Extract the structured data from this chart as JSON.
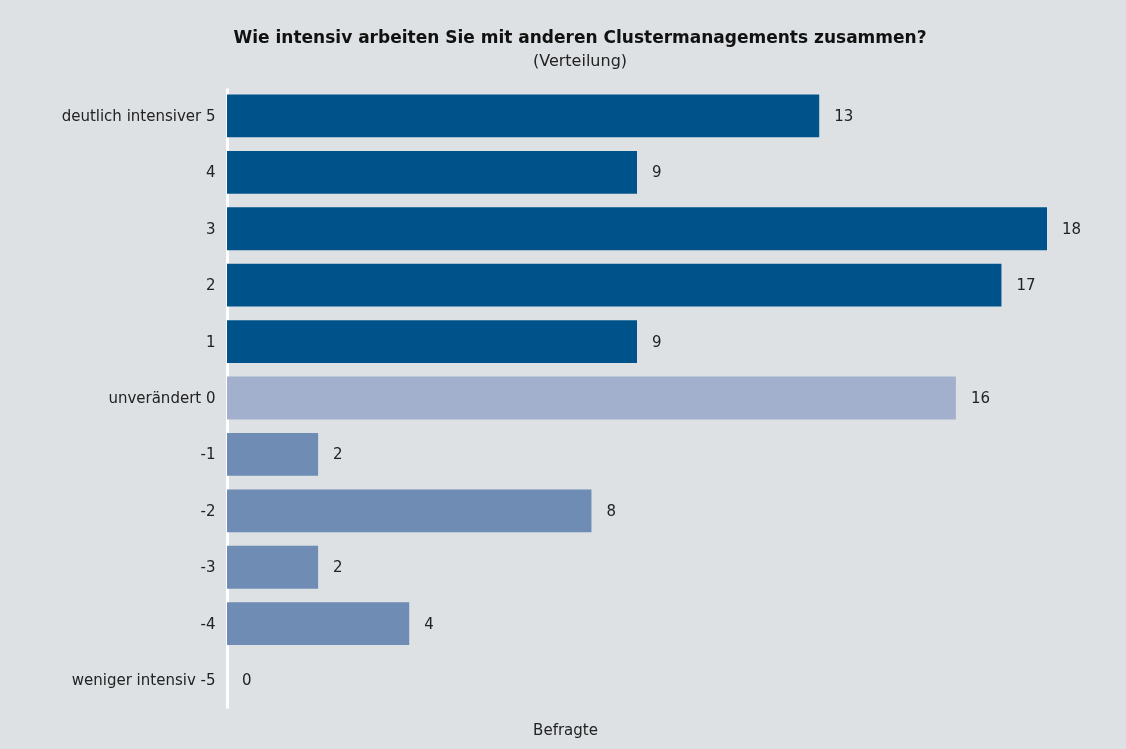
{
  "chart_data": {
    "type": "bar",
    "orientation": "horizontal",
    "title": "Wie intensiv arbeiten Sie mit anderen Clustermanagements zusammen?",
    "subtitle": "(Verteilung)",
    "xlabel": "Befragte",
    "categories": [
      "deutlich intensiver 5",
      "4",
      "3",
      "2",
      "1",
      "unverändert 0",
      "-1",
      "-2",
      "-3",
      "-4",
      "weniger intensiv -5"
    ],
    "values": [
      13,
      9,
      18,
      17,
      9,
      16,
      2,
      8,
      2,
      4,
      0
    ],
    "colors": [
      "#00538a",
      "#00538a",
      "#00538a",
      "#00538a",
      "#00538a",
      "#a2b0cd",
      "#6e8cb4",
      "#6e8cb4",
      "#6e8cb4",
      "#6e8cb4",
      "#6e8cb4"
    ],
    "data_labels": true,
    "tick_labels": "y"
  }
}
